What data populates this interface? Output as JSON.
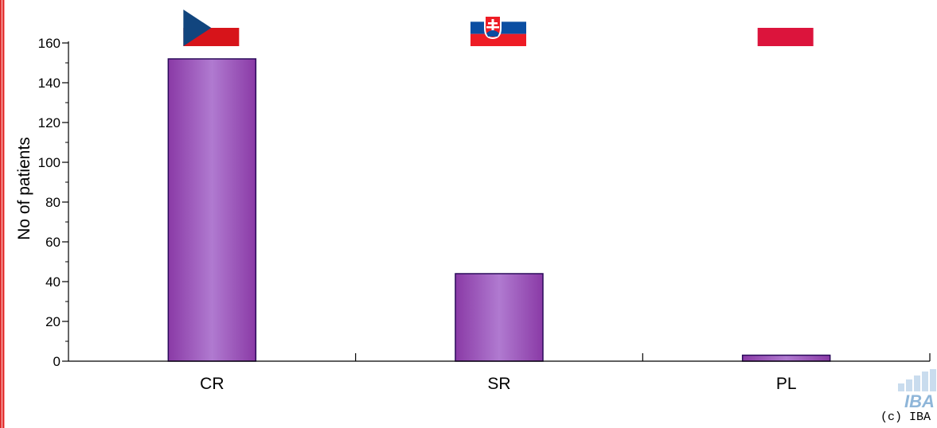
{
  "chart_data": {
    "type": "bar",
    "title": "",
    "xlabel": "",
    "ylabel": "No of patients",
    "categories": [
      "CR",
      "SR",
      "PL"
    ],
    "values": [
      152,
      44,
      3
    ],
    "ylim": [
      0,
      160
    ],
    "yticks": [
      0,
      20,
      40,
      60,
      80,
      100,
      120,
      140,
      160
    ],
    "minor_tick_step": 10,
    "grid": false,
    "bar_color": "#8a3aa6",
    "bar_highlight_color": "#b07ad0",
    "bar_edge_color": "#2a0a5a"
  },
  "flags": [
    {
      "category": "CR",
      "icon": "czech-flag-icon",
      "colors": [
        "#ffffff",
        "#d7141a",
        "#11457e"
      ]
    },
    {
      "category": "SR",
      "icon": "slovak-flag-icon",
      "colors": [
        "#ffffff",
        "#0b4ea2",
        "#ee1c25"
      ]
    },
    {
      "category": "PL",
      "icon": "polish-flag-icon",
      "colors": [
        "#ffffff",
        "#dc143c"
      ]
    }
  ],
  "watermark": {
    "logo_text": "IBA",
    "copyright": "(c) IBA"
  },
  "frame": {
    "left_border_color": "#e03030"
  }
}
